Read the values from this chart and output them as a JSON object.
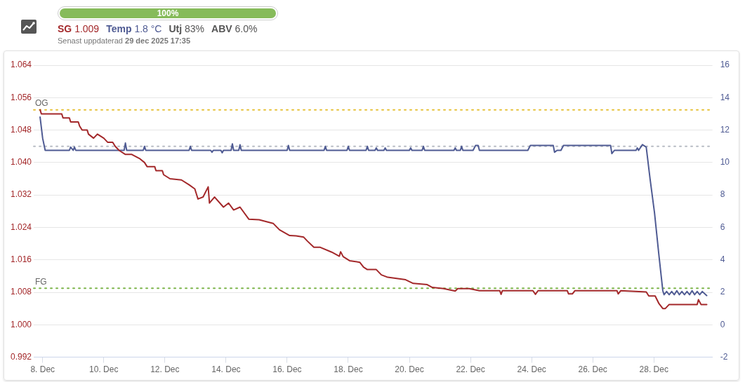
{
  "chart_data": {
    "type": "line",
    "annotations": [
      "100%",
      "1.009",
      "1.8 °C",
      "Utj 83%",
      "ABV 6.0%",
      "Senast uppdaterad 29 dec 2025 17:35"
    ],
    "xlim": [
      "2025-12-07T17:00",
      "2025-12-29T22:00"
    ],
    "xticks": [
      {
        "value": "2025-12-08",
        "label": "8. Dec"
      },
      {
        "value": "2025-12-10",
        "label": "10. Dec"
      },
      {
        "value": "2025-12-12",
        "label": "12. Dec"
      },
      {
        "value": "2025-12-14",
        "label": "14. Dec"
      },
      {
        "value": "2025-12-16",
        "label": "16. Dec"
      },
      {
        "value": "2025-12-18",
        "label": "18. Dec"
      },
      {
        "value": "2025-12-20",
        "label": "20. Dec"
      },
      {
        "value": "2025-12-22",
        "label": "22. Dec"
      },
      {
        "value": "2025-12-24",
        "label": "24. Dec"
      },
      {
        "value": "2025-12-26",
        "label": "26. Dec"
      },
      {
        "value": "2025-12-28",
        "label": "28. Dec"
      }
    ],
    "ylim": [
      0.992,
      1.064
    ],
    "yticks": [
      {
        "value": 0.992,
        "label": "0.992"
      },
      {
        "value": 1.0,
        "label": "1.000"
      },
      {
        "value": 1.008,
        "label": "1.008"
      },
      {
        "value": 1.016,
        "label": "1.016"
      },
      {
        "value": 1.024,
        "label": "1.024"
      },
      {
        "value": 1.032,
        "label": "1.032"
      },
      {
        "value": 1.04,
        "label": "1.040"
      },
      {
        "value": 1.048,
        "label": "1.048"
      },
      {
        "value": 1.056,
        "label": "1.056"
      },
      {
        "value": 1.064,
        "label": "1.064"
      }
    ],
    "y2lim": [
      -2,
      16
    ],
    "y2ticks": [
      -2,
      0,
      2,
      4,
      6,
      8,
      10,
      12,
      14,
      16
    ],
    "grid": "y",
    "legend": false,
    "marker": "none",
    "line_style": "solid",
    "ref_lines": [
      {
        "axis": "y",
        "value": 1.053,
        "label": "OG",
        "color": "#e6c23a",
        "line_style": "dotted"
      },
      {
        "axis": "y",
        "value": 1.009,
        "label": "FG",
        "color": "#7cb54a",
        "line_style": "dotted"
      },
      {
        "axis": "y2",
        "value": 11.0,
        "label": null,
        "color": "#b8bcc4",
        "line_style": "dotted"
      }
    ],
    "series": [
      {
        "name": "SG",
        "color": "#a3282a",
        "axis": "y",
        "x": [
          "2025-12-07T22:00",
          "2025-12-07T23:00",
          "2025-12-08T15:00",
          "2025-12-08T16:00",
          "2025-12-08T21:00",
          "2025-12-08T22:00",
          "2025-12-09T04:00",
          "2025-12-09T05:00",
          "2025-12-09T07:00",
          "2025-12-09T11:00",
          "2025-12-09T12:00",
          "2025-12-09T16:00",
          "2025-12-09T19:00",
          "2025-12-10T00:00",
          "2025-12-10T03:00",
          "2025-12-10T07:00",
          "2025-12-10T09:00",
          "2025-12-10T12:00",
          "2025-12-10T17:00",
          "2025-12-10T22:00",
          "2025-12-11T04:00",
          "2025-12-11T08:00",
          "2025-12-11T10:00",
          "2025-12-11T16:00",
          "2025-12-11T17:00",
          "2025-12-11T22:00",
          "2025-12-11T23:00",
          "2025-12-12T04:00",
          "2025-12-12T13:00",
          "2025-12-12T19:00",
          "2025-12-12T23:30",
          "2025-12-13T02:00",
          "2025-12-13T06:00",
          "2025-12-13T10:00",
          "2025-12-13T11:00",
          "2025-12-13T15:00",
          "2025-12-13T22:00",
          "2025-12-14T02:00",
          "2025-12-14T06:00",
          "2025-12-14T11:00",
          "2025-12-14T18:00",
          "2025-12-15T02:00",
          "2025-12-15T13:00",
          "2025-12-15T18:00",
          "2025-12-16T02:00",
          "2025-12-16T07:00",
          "2025-12-16T13:00",
          "2025-12-16T16:00",
          "2025-12-16T21:00",
          "2025-12-17T02:00",
          "2025-12-17T11:00",
          "2025-12-17T17:00",
          "2025-12-17T18:00",
          "2025-12-17T20:00",
          "2025-12-18T01:00",
          "2025-12-18T09:00",
          "2025-12-18T12:00",
          "2025-12-18T15:00",
          "2025-12-18T22:00",
          "2025-12-19T02:00",
          "2025-12-19T07:00",
          "2025-12-19T14:00",
          "2025-12-19T21:00",
          "2025-12-20T03:00",
          "2025-12-20T14:00",
          "2025-12-20T18:00",
          "2025-12-21T03:00",
          "2025-12-21T12:00",
          "2025-12-21T14:00",
          "2025-12-21T23:00",
          "2025-12-22T07:00",
          "2025-12-22T23:00",
          "2025-12-23T00:00",
          "2025-12-23T01:00",
          "2025-12-24T01:00",
          "2025-12-24T03:00",
          "2025-12-24T05:00",
          "2025-12-25T04:00",
          "2025-12-25T05:00",
          "2025-12-25T08:00",
          "2025-12-25T10:00",
          "2025-12-26T19:00",
          "2025-12-26T20:00",
          "2025-12-26T22:00",
          "2025-12-27T18:00",
          "2025-12-27T20:00",
          "2025-12-28T01:00",
          "2025-12-28T04:00",
          "2025-12-28T07:00",
          "2025-12-28T09:00",
          "2025-12-28T12:00",
          "2025-12-29T10:00",
          "2025-12-29T11:00",
          "2025-12-29T13:00",
          "2025-12-29T17:30"
        ],
        "values": [
          1.053,
          1.052,
          1.052,
          1.051,
          1.051,
          1.05,
          1.05,
          1.049,
          1.048,
          1.048,
          1.047,
          1.046,
          1.047,
          1.046,
          1.045,
          1.045,
          1.044,
          1.043,
          1.042,
          1.042,
          1.041,
          1.04,
          1.039,
          1.039,
          1.038,
          1.038,
          1.037,
          1.036,
          1.0357,
          1.0345,
          1.0335,
          1.031,
          1.0315,
          1.034,
          1.03,
          1.0315,
          1.029,
          1.03,
          1.0283,
          1.029,
          1.026,
          1.0259,
          1.025,
          1.0234,
          1.022,
          1.0219,
          1.0216,
          1.0206,
          1.0191,
          1.0191,
          1.0179,
          1.0169,
          1.018,
          1.0168,
          1.0158,
          1.0154,
          1.0142,
          1.0136,
          1.0136,
          1.0123,
          1.0117,
          1.0114,
          1.0111,
          1.0102,
          1.0099,
          1.0092,
          1.0089,
          1.0083,
          1.0089,
          1.0089,
          1.0084,
          1.0084,
          1.0075,
          1.0084,
          1.0084,
          1.0075,
          1.0084,
          1.0084,
          1.0076,
          1.0076,
          1.0084,
          1.0084,
          1.0076,
          1.0084,
          1.0081,
          1.0071,
          1.0071,
          1.0052,
          1.004,
          1.004,
          1.005,
          1.005,
          1.0062,
          1.005,
          1.005
        ]
      },
      {
        "name": "Temp",
        "color": "#4f5b93",
        "axis": "y2",
        "x": [
          "2025-12-07T22:00",
          "2025-12-08T00:00",
          "2025-12-08T02:00",
          "2025-12-08T21:00",
          "2025-12-08T22:00",
          "2025-12-09T00:00",
          "2025-12-09T01:00",
          "2025-12-09T02:00",
          "2025-12-10T16:00",
          "2025-12-10T17:00",
          "2025-12-10T18:00",
          "2025-12-11T07:00",
          "2025-12-11T08:00",
          "2025-12-11T09:00",
          "2025-12-12T19:00",
          "2025-12-12T20:00",
          "2025-12-12T21:00",
          "2025-12-13T12:00",
          "2025-12-13T13:00",
          "2025-12-13T14:00",
          "2025-12-13T20:00",
          "2025-12-13T21:00",
          "2025-12-13T22:00",
          "2025-12-14T04:00",
          "2025-12-14T05:00",
          "2025-12-14T06:00",
          "2025-12-14T10:00",
          "2025-12-14T11:00",
          "2025-12-14T12:00",
          "2025-12-16T00:00",
          "2025-12-16T01:00",
          "2025-12-16T02:00",
          "2025-12-17T05:00",
          "2025-12-17T06:00",
          "2025-12-17T07:00",
          "2025-12-17T23:00",
          "2025-12-18T00:00",
          "2025-12-18T01:00",
          "2025-12-18T14:00",
          "2025-12-18T15:00",
          "2025-12-18T16:00",
          "2025-12-18T21:00",
          "2025-12-18T22:00",
          "2025-12-18T23:00",
          "2025-12-19T04:00",
          "2025-12-19T05:00",
          "2025-12-19T06:00",
          "2025-12-20T00:00",
          "2025-12-20T01:00",
          "2025-12-20T02:00",
          "2025-12-20T10:00",
          "2025-12-20T11:00",
          "2025-12-20T12:00",
          "2025-12-21T11:00",
          "2025-12-21T12:00",
          "2025-12-21T13:00",
          "2025-12-21T16:00",
          "2025-12-21T17:00",
          "2025-12-21T18:00",
          "2025-12-22T02:00",
          "2025-12-22T04:00",
          "2025-12-22T06:00",
          "2025-12-22T07:00",
          "2025-12-23T21:00",
          "2025-12-23T23:00",
          "2025-12-24T17:00",
          "2025-12-24T18:00",
          "2025-12-24T20:00",
          "2025-12-24T23:00",
          "2025-12-25T01:00",
          "2025-12-26T14:00",
          "2025-12-26T15:00",
          "2025-12-26T17:00",
          "2025-12-27T10:00",
          "2025-12-27T11:00",
          "2025-12-27T12:00",
          "2025-12-27T15:00",
          "2025-12-27T18:00",
          "2025-12-27T21:00",
          "2025-12-28T00:30",
          "2025-12-28T04:00",
          "2025-12-28T07:00",
          "2025-12-28T08:00",
          "2025-12-28T10:00",
          "2025-12-28T12:00",
          "2025-12-28T14:00",
          "2025-12-28T16:00",
          "2025-12-28T18:00",
          "2025-12-28T20:00",
          "2025-12-28T22:00",
          "2025-12-29T00:00",
          "2025-12-29T02:00",
          "2025-12-29T04:00",
          "2025-12-29T06:00",
          "2025-12-29T08:00",
          "2025-12-29T10:00",
          "2025-12-29T12:00",
          "2025-12-29T14:00",
          "2025-12-29T17:30"
        ],
        "values": [
          12.8,
          11.5,
          10.75,
          10.75,
          10.95,
          10.75,
          10.95,
          10.75,
          10.75,
          11.2,
          10.75,
          10.75,
          11.0,
          10.75,
          10.75,
          11.0,
          10.75,
          10.75,
          10.63,
          10.75,
          10.75,
          10.6,
          10.75,
          10.75,
          11.15,
          10.75,
          10.75,
          11.1,
          10.75,
          10.75,
          11.05,
          10.75,
          10.75,
          11.0,
          10.75,
          10.75,
          11.0,
          10.75,
          10.75,
          11.0,
          10.75,
          10.75,
          10.9,
          10.75,
          10.75,
          10.9,
          10.75,
          10.75,
          10.9,
          10.75,
          10.75,
          11.0,
          10.75,
          10.75,
          10.9,
          10.75,
          10.75,
          11.0,
          10.75,
          10.75,
          11.05,
          11.05,
          10.75,
          10.75,
          11.05,
          11.05,
          10.63,
          10.75,
          10.75,
          11.05,
          11.05,
          10.55,
          10.75,
          10.75,
          10.9,
          10.75,
          11.1,
          10.95,
          9.0,
          6.9,
          4.25,
          2.1,
          1.85,
          2.05,
          1.85,
          2.05,
          1.85,
          2.1,
          1.85,
          2.05,
          1.85,
          2.05,
          1.85,
          2.1,
          1.85,
          2.05,
          1.85,
          2.05,
          1.8
        ]
      }
    ]
  }
}
